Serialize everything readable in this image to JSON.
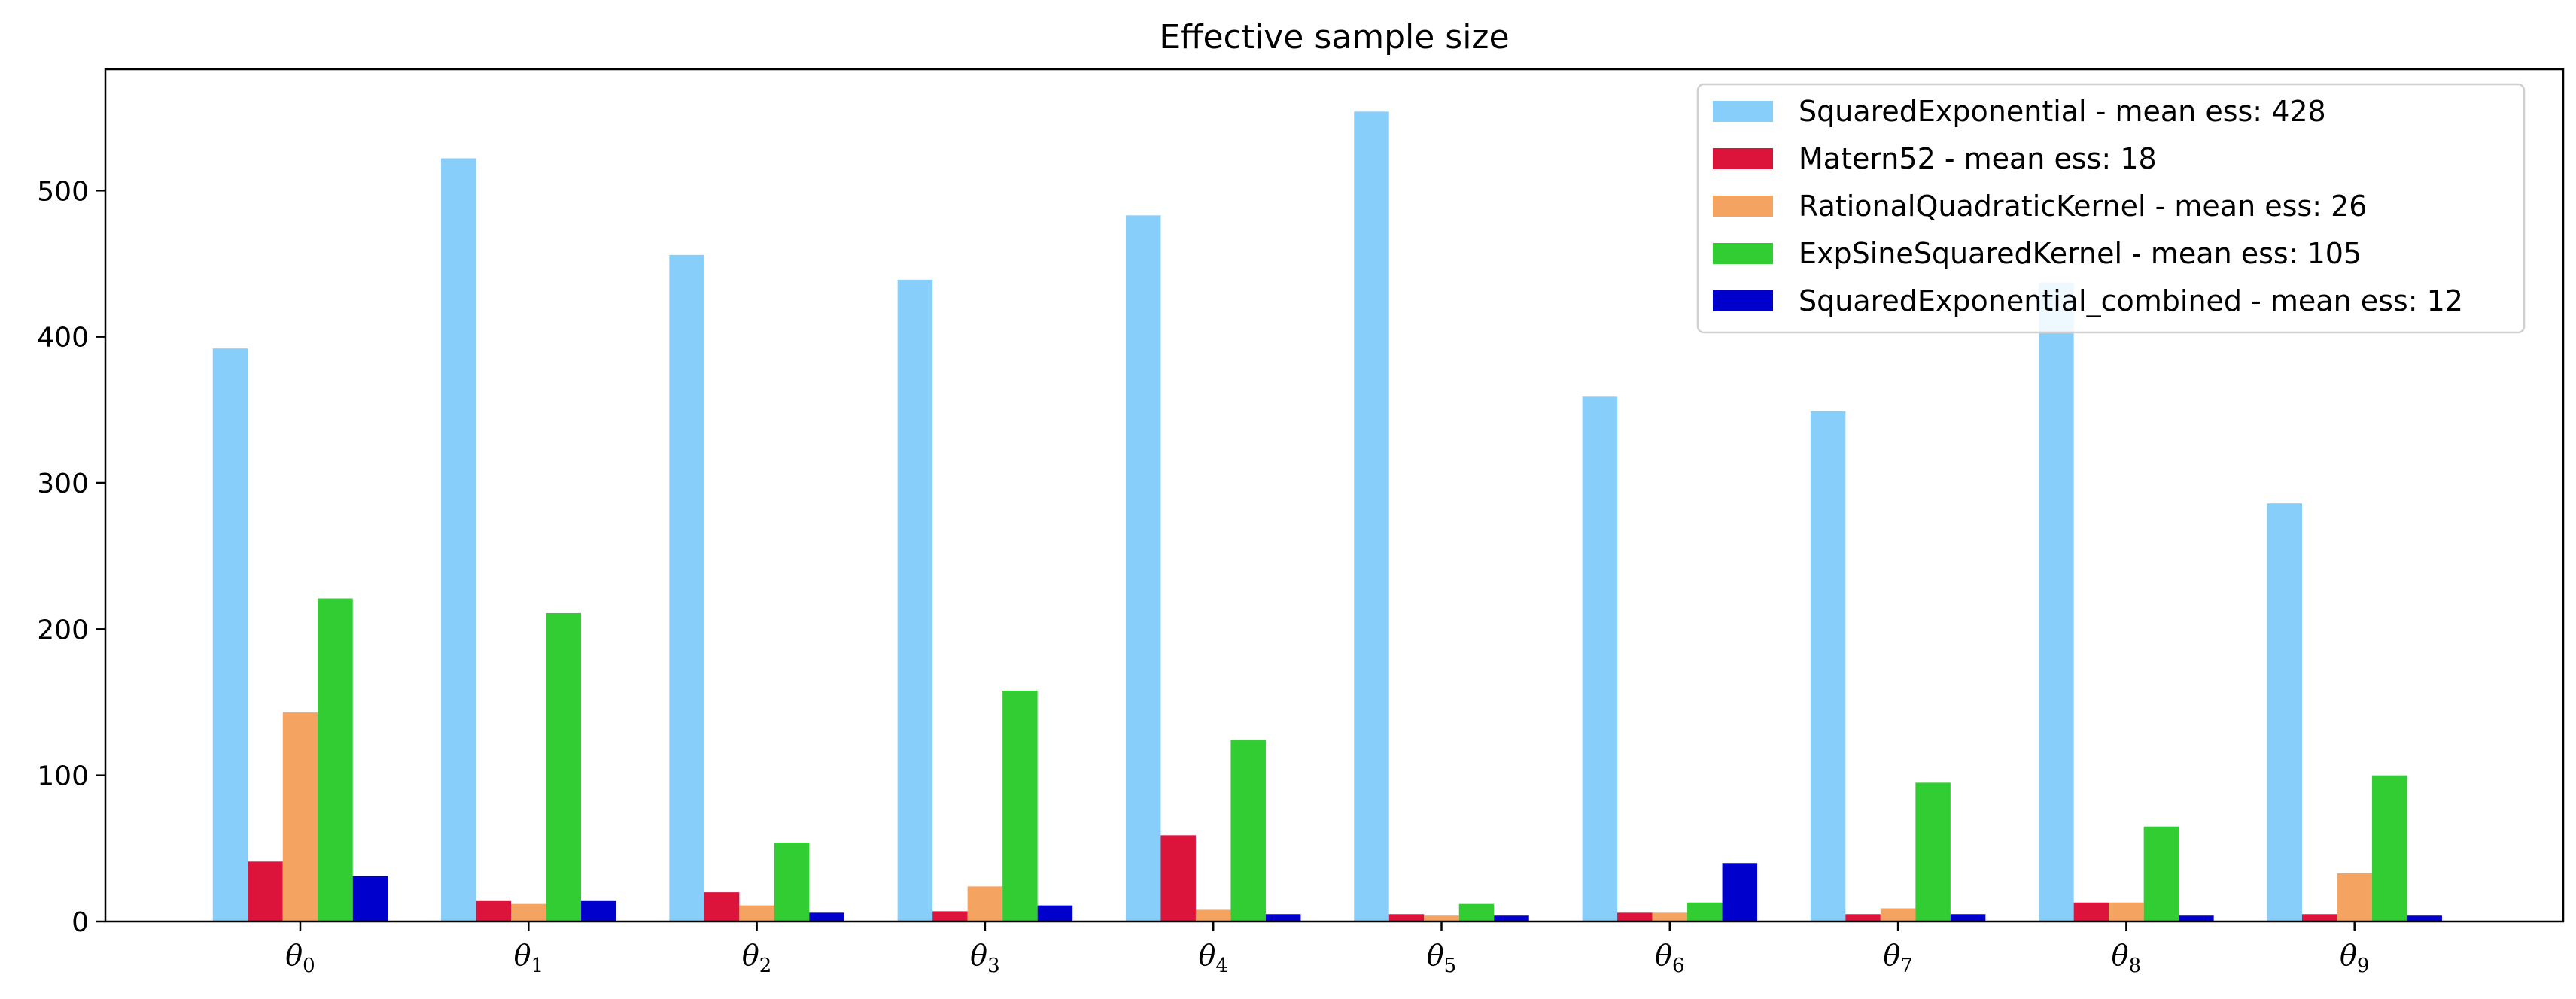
{
  "chart_data": {
    "type": "bar",
    "title": "Effective sample size",
    "xlabel": "",
    "ylabel": "",
    "ylim": [
      0,
      583
    ],
    "yticks": [
      0,
      100,
      200,
      300,
      400,
      500
    ],
    "grid": false,
    "legend_position": "top-right",
    "categories": [
      {
        "base": "θ",
        "sub": "0"
      },
      {
        "base": "θ",
        "sub": "1"
      },
      {
        "base": "θ",
        "sub": "2"
      },
      {
        "base": "θ",
        "sub": "3"
      },
      {
        "base": "θ",
        "sub": "4"
      },
      {
        "base": "θ",
        "sub": "5"
      },
      {
        "base": "θ",
        "sub": "6"
      },
      {
        "base": "θ",
        "sub": "7"
      },
      {
        "base": "θ",
        "sub": "8"
      },
      {
        "base": "θ",
        "sub": "9"
      }
    ],
    "series": [
      {
        "name": "SquaredExponential - mean ess: 428",
        "color": "#87CEFA",
        "values": [
          392,
          522,
          456,
          439,
          483,
          554,
          359,
          349,
          437,
          286
        ]
      },
      {
        "name": "Matern52 - mean ess: 18",
        "color": "#DC143C",
        "values": [
          41,
          14,
          20,
          7,
          59,
          5,
          6,
          5,
          13,
          5
        ]
      },
      {
        "name": "RationalQuadraticKernel - mean ess: 26",
        "color": "#F4A460",
        "values": [
          143,
          12,
          11,
          24,
          8,
          4,
          6,
          9,
          13,
          33
        ]
      },
      {
        "name": "ExpSineSquaredKernel - mean ess: 105",
        "color": "#32CD32",
        "values": [
          221,
          211,
          54,
          158,
          124,
          12,
          13,
          95,
          65,
          100
        ]
      },
      {
        "name": "SquaredExponential_combined - mean ess: 12",
        "color": "#0000CD",
        "values": [
          31,
          14,
          6,
          11,
          5,
          4,
          40,
          5,
          4,
          4
        ]
      }
    ]
  }
}
